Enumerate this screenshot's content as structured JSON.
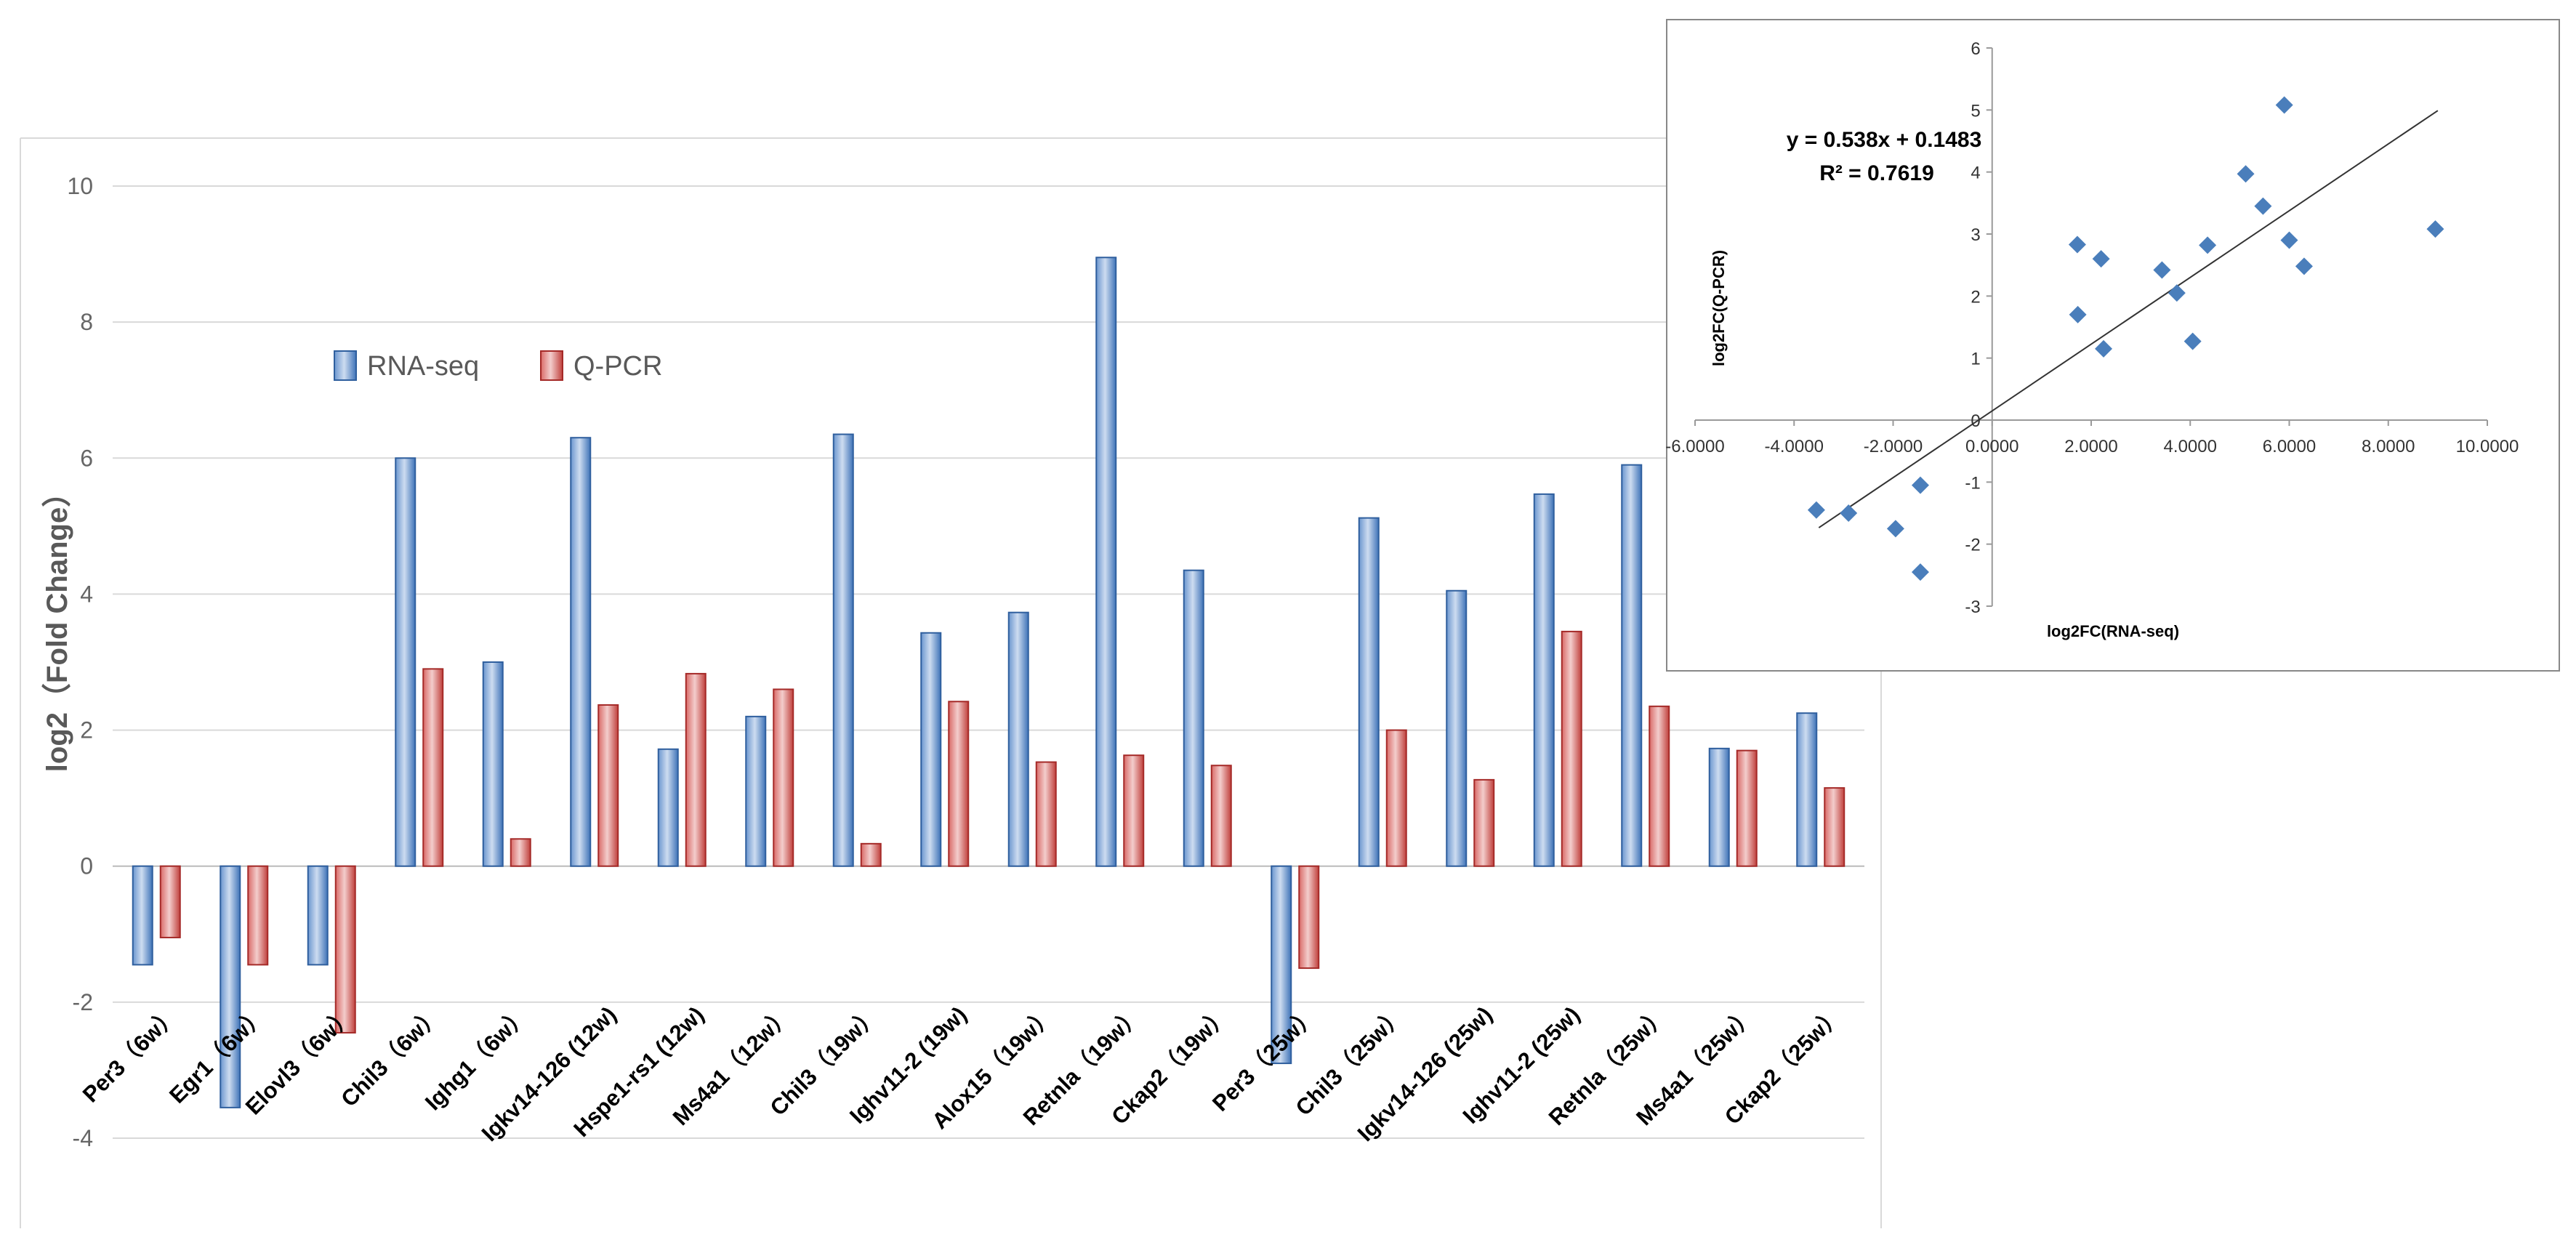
{
  "chart_data": [
    {
      "type": "bar",
      "title": "",
      "xlabel": "",
      "ylabel": "log2（Fold Change）",
      "ylim": [
        -4,
        10
      ],
      "yticks": [
        "10",
        "8",
        "6",
        "4",
        "2",
        "0",
        "-2",
        "-4"
      ],
      "legend_position": "top-left",
      "categories": [
        "Per3（6w）",
        "Egr1（6w）",
        "Elovl3（6w）",
        "Chil3（6w）",
        "Ighg1（6w）",
        "Igkv14-126 (12w)",
        "Hspe1-rs1 (12w)",
        "Ms4a1（12w）",
        "Chil3（19w）",
        "Ighv11-2 (19w)",
        "Alox15（19w）",
        "Retnla（19w）",
        "Ckap2（19w）",
        "Per3（25w）",
        "Chil3（25w）",
        "Igkv14-126 (25w)",
        "Ighv11-2 (25w)",
        "Retnla（25w）",
        "Ms4a1（25w）",
        "Ckap2（25w）"
      ],
      "series": [
        {
          "name": "RNA-seq",
          "color": "#5b8fd1",
          "values": [
            -1.45,
            -3.55,
            -1.45,
            6.0,
            3.0,
            6.3,
            1.72,
            2.2,
            6.35,
            3.43,
            3.73,
            8.95,
            4.35,
            -2.9,
            5.12,
            4.05,
            5.47,
            5.9,
            1.73,
            2.25
          ]
        },
        {
          "name": "Q-PCR",
          "color": "#d9534f",
          "values": [
            -1.05,
            -1.45,
            -2.45,
            2.9,
            0.4,
            2.37,
            2.83,
            2.6,
            0.33,
            2.42,
            1.53,
            1.63,
            1.48,
            -1.5,
            2.0,
            1.27,
            3.45,
            2.35,
            1.7,
            1.15
          ]
        }
      ]
    },
    {
      "type": "scatter",
      "title": "",
      "xlabel": "log2FC(RNA-seq)",
      "ylabel": "log2FC(Q-PCR)",
      "xlim": [
        -6,
        10
      ],
      "ylim": [
        -3,
        6
      ],
      "xticks": [
        "-6.0000",
        "-4.0000",
        "-2.0000",
        "0.0000",
        "2.0000",
        "4.0000",
        "6.0000",
        "8.0000",
        "10.0000"
      ],
      "yticks": [
        "6",
        "5",
        "4",
        "3",
        "2",
        "1",
        "0",
        "-1",
        "-2",
        "-3"
      ],
      "annotations": [
        "y = 0.538x + 0.1483",
        "R² = 0.7619"
      ],
      "trendline": {
        "slope": 0.538,
        "intercept": 0.1483,
        "x_range": [
          -3.5,
          9.0
        ]
      },
      "marker_color": "#4a7ebb",
      "points": [
        {
          "x": -3.55,
          "y": -1.45
        },
        {
          "x": -2.9,
          "y": -1.5
        },
        {
          "x": -1.95,
          "y": -1.75
        },
        {
          "x": -1.45,
          "y": -1.05
        },
        {
          "x": -1.45,
          "y": -2.45
        },
        {
          "x": 1.72,
          "y": 2.83
        },
        {
          "x": 1.73,
          "y": 1.7
        },
        {
          "x": 2.2,
          "y": 2.6
        },
        {
          "x": 2.25,
          "y": 1.15
        },
        {
          "x": 3.43,
          "y": 2.42
        },
        {
          "x": 3.73,
          "y": 2.05
        },
        {
          "x": 4.05,
          "y": 1.27
        },
        {
          "x": 4.35,
          "y": 2.82
        },
        {
          "x": 5.12,
          "y": 3.97
        },
        {
          "x": 5.47,
          "y": 3.45
        },
        {
          "x": 5.9,
          "y": 5.08
        },
        {
          "x": 6.0,
          "y": 2.9
        },
        {
          "x": 6.3,
          "y": 2.48
        },
        {
          "x": 8.95,
          "y": 3.08
        }
      ]
    }
  ]
}
